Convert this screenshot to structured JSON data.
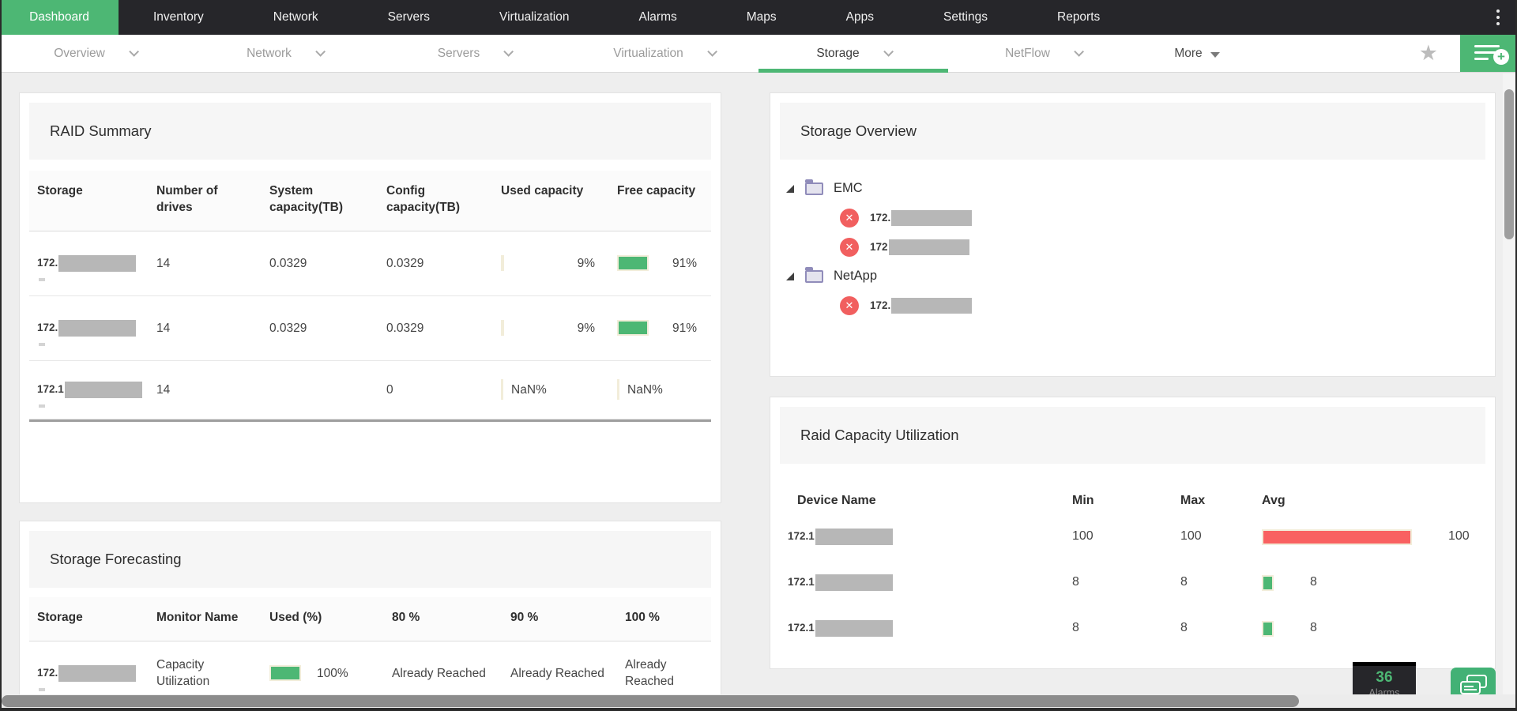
{
  "colors": {
    "green": "#4db774",
    "red": "#f96161",
    "nav_bg": "#26262a",
    "bar_border": "#f2edda"
  },
  "topnav": {
    "items": [
      {
        "label": "Dashboard",
        "active": true
      },
      {
        "label": "Inventory"
      },
      {
        "label": "Network"
      },
      {
        "label": "Servers"
      },
      {
        "label": "Virtualization"
      },
      {
        "label": "Alarms"
      },
      {
        "label": "Maps"
      },
      {
        "label": "Apps"
      },
      {
        "label": "Settings"
      },
      {
        "label": "Reports"
      }
    ]
  },
  "subnav": {
    "tabs": [
      {
        "label": "Overview"
      },
      {
        "label": "Network"
      },
      {
        "label": "Servers"
      },
      {
        "label": "Virtualization"
      },
      {
        "label": "Storage",
        "active": true
      },
      {
        "label": "NetFlow"
      },
      {
        "label": "More"
      }
    ]
  },
  "raid_summary": {
    "title": "RAID Summary",
    "columns": [
      "Storage",
      "Number of drives",
      "System capacity(TB)",
      "Config capacity(TB)",
      "Used capacity",
      "Free capacity"
    ],
    "rows": [
      {
        "ip": "172.",
        "drives": "14",
        "system": "0.0329",
        "config": "0.0329",
        "used_pct": 9,
        "used": "9%",
        "free_pct": 91,
        "free": "91%"
      },
      {
        "ip": "172.",
        "drives": "14",
        "system": "0.0329",
        "config": "0.0329",
        "used_pct": 9,
        "used": "9%",
        "free_pct": 91,
        "free": "91%"
      },
      {
        "ip": "172.1",
        "drives": "14",
        "system": "",
        "config": "0",
        "used": "NaN%",
        "free": "NaN%"
      }
    ]
  },
  "storage_forecasting": {
    "title": "Storage Forecasting",
    "columns": [
      "Storage",
      "Monitor Name",
      "Used (%)",
      "80 %",
      "90 %",
      "100 %"
    ],
    "rows": [
      {
        "ip": "172.",
        "monitor": "Capacity Utilization",
        "used_pct": 100,
        "used": "100%",
        "t80": "Already Reached",
        "t90": "Already Reached",
        "t100": "Already Reached"
      }
    ]
  },
  "storage_overview": {
    "title": "Storage Overview",
    "tree": [
      {
        "folder": "EMC",
        "children": [
          "172.",
          "172"
        ]
      },
      {
        "folder": "NetApp",
        "children": [
          "172."
        ]
      }
    ]
  },
  "raid_capacity": {
    "title": "Raid Capacity Utilization",
    "columns": [
      "Device Name",
      "Min",
      "Max",
      "Avg"
    ],
    "rows": [
      {
        "device": "172.1",
        "min": "100",
        "max": "100",
        "avg_pct": 100,
        "avg": "100",
        "color": "#f96161"
      },
      {
        "device": "172.1",
        "min": "8",
        "max": "8",
        "avg_pct": 8,
        "avg": "8",
        "color": "#4db774"
      },
      {
        "device": "172.1",
        "min": "8",
        "max": "8",
        "avg_pct": 8,
        "avg": "8",
        "color": "#4db774"
      }
    ]
  },
  "alarms_badge": {
    "count": "36",
    "label": "Alarms"
  }
}
